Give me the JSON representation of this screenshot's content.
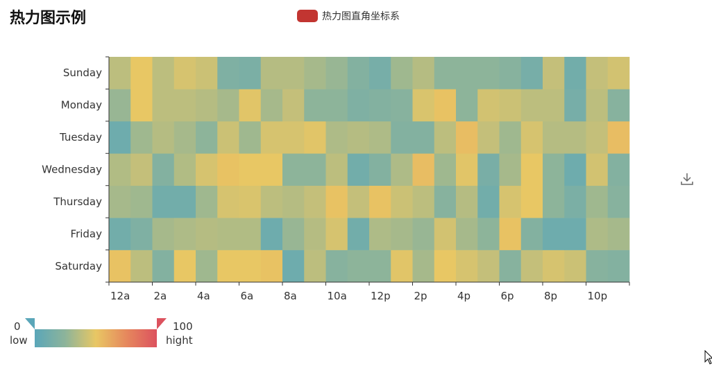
{
  "title": "热力图示例",
  "legend": {
    "label": "热力图直角坐标系",
    "color": "#c23531"
  },
  "toolbox": {
    "download_icon": "download-icon"
  },
  "visual_map": {
    "min": 0,
    "max": 100,
    "min_label": "0",
    "max_label": "100",
    "text_low": "low",
    "text_high": "hight",
    "colors": [
      "#5aa6b9",
      "#8db49a",
      "#e8c764",
      "#e6885d",
      "#dc525e"
    ]
  },
  "chart_data": {
    "type": "heatmap",
    "x_categories": [
      "12a",
      "1a",
      "2a",
      "3a",
      "4a",
      "5a",
      "6a",
      "7a",
      "8a",
      "9a",
      "10a",
      "11a",
      "12p",
      "1p",
      "2p",
      "3p",
      "4p",
      "5p",
      "6p",
      "7p",
      "8p",
      "9p",
      "10p",
      "11p"
    ],
    "x_tick_labels_shown": [
      "12a",
      "2a",
      "4a",
      "6a",
      "8a",
      "10a",
      "12p",
      "2p",
      "4p",
      "6p",
      "8p",
      "10p"
    ],
    "y_categories": [
      "Saturday",
      "Friday",
      "Thursday",
      "Wednesday",
      "Tuesday",
      "Monday",
      "Sunday"
    ],
    "values": [
      [
        52,
        38,
        20,
        50,
        30,
        50,
        50,
        52,
        10,
        38,
        22,
        25,
        25,
        48,
        32,
        50,
        45,
        40,
        22,
        40,
        45,
        42,
        22,
        20
      ],
      [
        12,
        18,
        32,
        34,
        36,
        35,
        35,
        10,
        28,
        36,
        45,
        12,
        34,
        32,
        28,
        44,
        32,
        25,
        52,
        20,
        10,
        10,
        34,
        32
      ],
      [
        32,
        30,
        12,
        12,
        30,
        45,
        46,
        38,
        36,
        40,
        52,
        40,
        52,
        42,
        38,
        22,
        36,
        12,
        45,
        50,
        25,
        16,
        30,
        22
      ],
      [
        35,
        40,
        20,
        35,
        45,
        52,
        50,
        50,
        25,
        25,
        38,
        12,
        20,
        34,
        54,
        30,
        48,
        15,
        32,
        50,
        25,
        10,
        44,
        20
      ],
      [
        10,
        30,
        36,
        32,
        25,
        42,
        30,
        45,
        45,
        48,
        34,
        36,
        34,
        20,
        20,
        38,
        54,
        40,
        30,
        45,
        36,
        36,
        40,
        54
      ],
      [
        28,
        50,
        38,
        38,
        36,
        32,
        48,
        32,
        40,
        25,
        25,
        18,
        20,
        22,
        46,
        52,
        25,
        44,
        42,
        38,
        38,
        14,
        38,
        22
      ],
      [
        38,
        50,
        38,
        45,
        42,
        18,
        16,
        36,
        36,
        32,
        28,
        20,
        14,
        30,
        36,
        25,
        25,
        25,
        22,
        14,
        40,
        12,
        40,
        44
      ]
    ]
  }
}
